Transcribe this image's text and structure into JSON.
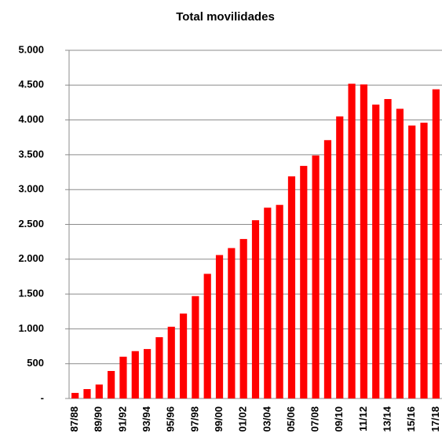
{
  "chart_data": {
    "type": "bar",
    "title": "Total movilidades",
    "categories": [
      "87/88",
      null,
      "89/90",
      null,
      "91/92",
      null,
      "93/94",
      null,
      "95/96",
      null,
      "97/98",
      null,
      "99/00",
      null,
      "01/02",
      null,
      "03/04",
      null,
      "05/06",
      null,
      "07/08",
      null,
      "09/10",
      null,
      "11/12",
      null,
      "13/14",
      null,
      "15/16",
      null,
      "17/18"
    ],
    "values": [
      80,
      135,
      200,
      395,
      600,
      680,
      710,
      880,
      1030,
      1220,
      1470,
      1790,
      2060,
      2160,
      2290,
      2560,
      2740,
      2780,
      3190,
      3340,
      3490,
      3710,
      4050,
      4520,
      4510,
      4220,
      4300,
      4160,
      3920,
      3960,
      4440
    ],
    "color": "#ff0000",
    "ylim": [
      0,
      5000
    ],
    "yticks": [
      {
        "value": 0,
        "label": "-"
      },
      500,
      {
        "value": 1000,
        "label": "1.000"
      },
      {
        "value": 1500,
        "label": "1.500"
      },
      {
        "value": 2000,
        "label": "2.000"
      },
      {
        "value": 2500,
        "label": "2.500"
      },
      {
        "value": 3000,
        "label": "3.000"
      },
      {
        "value": 3500,
        "label": "3.500"
      },
      {
        "value": 4000,
        "label": "4.000"
      },
      {
        "value": 4500,
        "label": "4.500"
      },
      {
        "value": 5000,
        "label": "5.000"
      }
    ],
    "grid": true
  }
}
